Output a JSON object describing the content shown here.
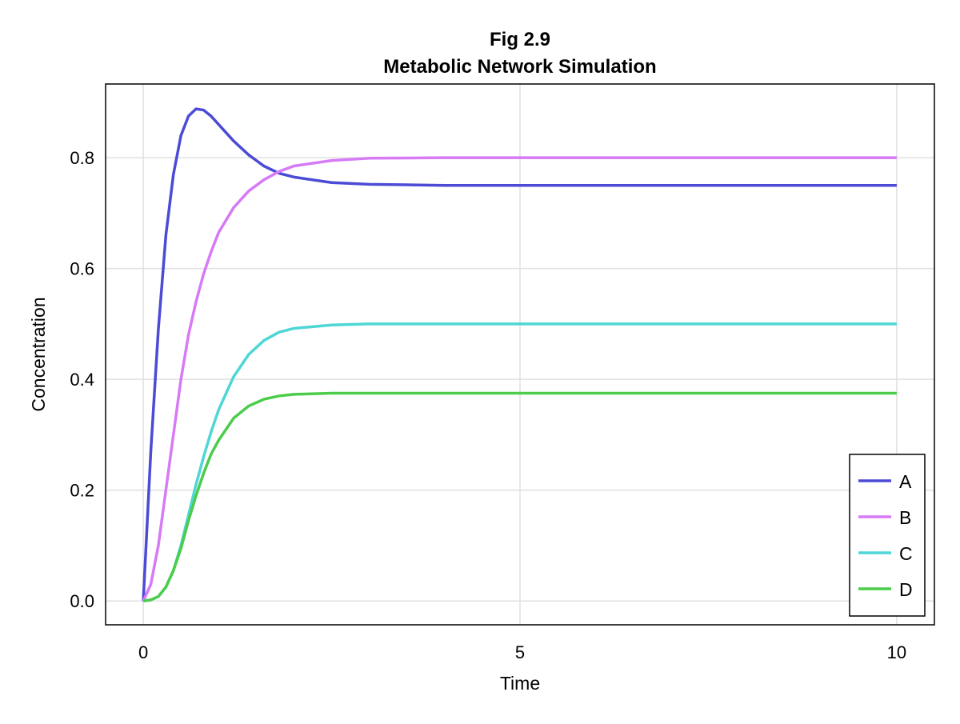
{
  "chart_data": {
    "type": "line",
    "title": "Fig 2.9",
    "subtitle": "Metabolic Network Simulation",
    "xlabel": "Time",
    "ylabel": "Concentration",
    "xlim": [
      -0.5,
      10.5
    ],
    "ylim": [
      -0.043,
      0.933
    ],
    "xticks": [
      0,
      5,
      10
    ],
    "xtick_labels": [
      "0",
      "5",
      "10"
    ],
    "yticks": [
      0.0,
      0.2,
      0.4,
      0.6,
      0.8
    ],
    "ytick_labels": [
      "0.0",
      "0.2",
      "0.4",
      "0.6",
      "0.8"
    ],
    "grid": true,
    "legend_position": "bottom-right",
    "x": [
      0,
      0.1,
      0.2,
      0.3,
      0.4,
      0.5,
      0.6,
      0.7,
      0.8,
      0.9,
      1.0,
      1.2,
      1.4,
      1.6,
      1.8,
      2.0,
      2.5,
      3,
      4,
      5,
      6,
      7,
      8,
      9,
      10
    ],
    "series": [
      {
        "name": "A",
        "color": "#4b4bd6",
        "values": [
          0,
          0.27,
          0.49,
          0.66,
          0.77,
          0.84,
          0.875,
          0.888,
          0.886,
          0.875,
          0.86,
          0.83,
          0.805,
          0.785,
          0.772,
          0.765,
          0.755,
          0.752,
          0.75,
          0.75,
          0.75,
          0.75,
          0.75,
          0.75,
          0.75
        ]
      },
      {
        "name": "B",
        "color": "#d67af5",
        "values": [
          0,
          0.03,
          0.1,
          0.2,
          0.3,
          0.4,
          0.48,
          0.54,
          0.59,
          0.63,
          0.665,
          0.71,
          0.74,
          0.76,
          0.775,
          0.785,
          0.795,
          0.799,
          0.8,
          0.8,
          0.8,
          0.8,
          0.8,
          0.8,
          0.8
        ]
      },
      {
        "name": "C",
        "color": "#4fd6d6",
        "values": [
          0,
          0.002,
          0.008,
          0.025,
          0.055,
          0.1,
          0.155,
          0.21,
          0.26,
          0.305,
          0.345,
          0.405,
          0.445,
          0.47,
          0.485,
          0.492,
          0.498,
          0.5,
          0.5,
          0.5,
          0.5,
          0.5,
          0.5,
          0.5,
          0.5
        ]
      },
      {
        "name": "D",
        "color": "#4bcc4b",
        "values": [
          0,
          0.002,
          0.008,
          0.025,
          0.055,
          0.095,
          0.145,
          0.19,
          0.23,
          0.265,
          0.29,
          0.33,
          0.352,
          0.364,
          0.37,
          0.373,
          0.375,
          0.375,
          0.375,
          0.375,
          0.375,
          0.375,
          0.375,
          0.375,
          0.375
        ]
      }
    ]
  }
}
